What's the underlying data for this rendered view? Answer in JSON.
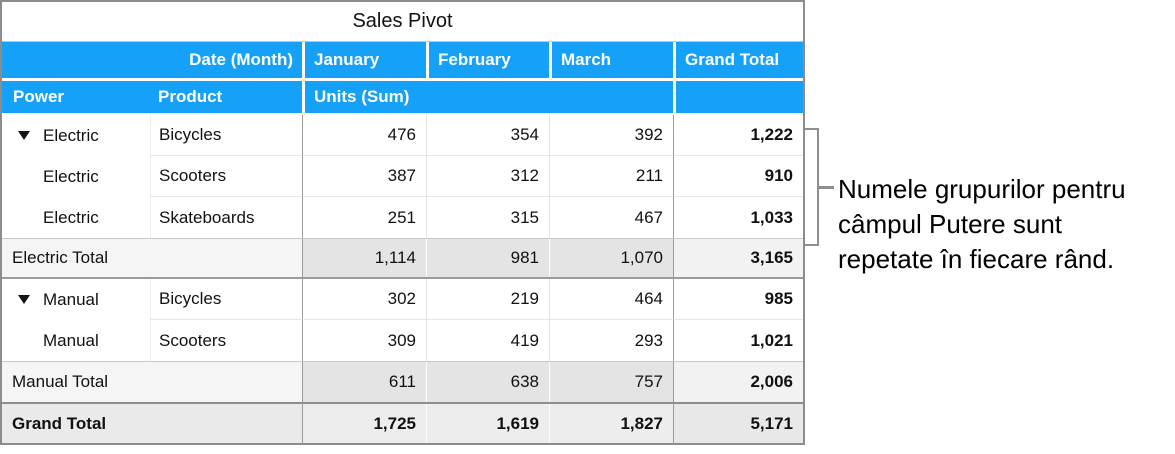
{
  "title": "Sales Pivot",
  "header": {
    "date_month_label": "Date (Month)",
    "month_columns": [
      "January",
      "February",
      "March"
    ],
    "grand_total_label": "Grand Total",
    "power_label": "Power",
    "product_label": "Product",
    "units_label": "Units (Sum)"
  },
  "groups": [
    {
      "rows": [
        {
          "power": "Electric",
          "product": "Bicycles",
          "jan": "476",
          "feb": "354",
          "mar": "392",
          "total": "1,222"
        },
        {
          "power": "Electric",
          "product": "Scooters",
          "jan": "387",
          "feb": "312",
          "mar": "211",
          "total": "910"
        },
        {
          "power": "Electric",
          "product": "Skateboards",
          "jan": "251",
          "feb": "315",
          "mar": "467",
          "total": "1,033"
        }
      ],
      "total_row": {
        "label": "Electric Total",
        "jan": "1,114",
        "feb": "981",
        "mar": "1,070",
        "total": "3,165"
      }
    },
    {
      "rows": [
        {
          "power": "Manual",
          "product": "Bicycles",
          "jan": "302",
          "feb": "219",
          "mar": "464",
          "total": "985"
        },
        {
          "power": "Manual",
          "product": "Scooters",
          "jan": "309",
          "feb": "419",
          "mar": "293",
          "total": "1,021"
        }
      ],
      "total_row": {
        "label": "Manual Total",
        "jan": "611",
        "feb": "638",
        "mar": "757",
        "total": "2,006"
      }
    }
  ],
  "grand_total_row": {
    "label": "Grand Total",
    "jan": "1,725",
    "feb": "1,619",
    "mar": "1,827",
    "total": "5,171"
  },
  "annotation": {
    "text": "Numele grupurilor pentru câmpul Putere sunt repetate în fiecare rând.",
    "lines": [
      "Numele grupurilor pentru",
      "câmpul Putere sunt",
      "repetate în fiecare rând."
    ]
  },
  "colors": {
    "header_blue": "#16A1F8",
    "header_text": "#FFFFFF",
    "total_cell_gray": "#E4E4E4",
    "total_label_gray": "#F5F5F5",
    "grand_row_gray": "#EDEDED",
    "strong_border_gray": "#9B9B9B",
    "bracket_gray": "#8E8E8E"
  }
}
